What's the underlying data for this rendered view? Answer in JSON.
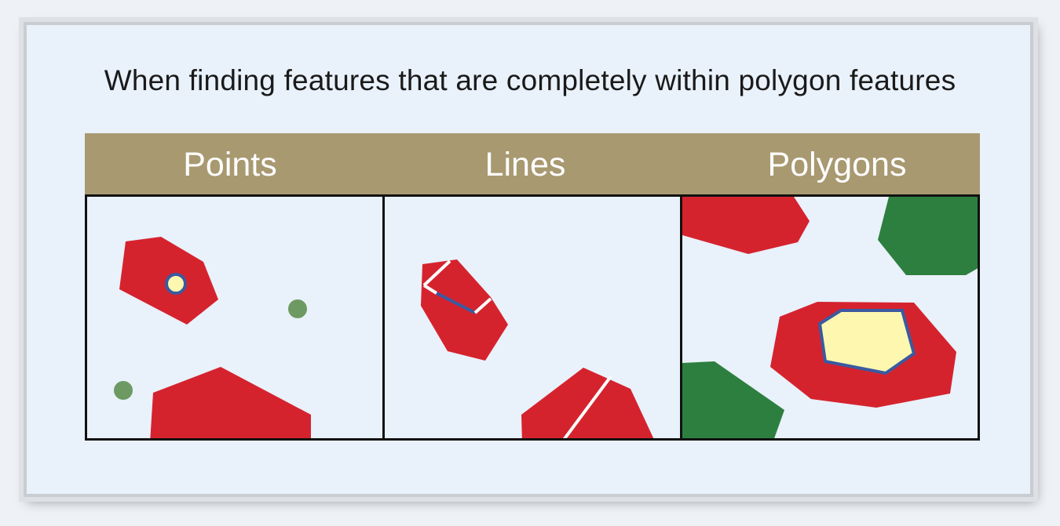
{
  "title": "When finding features that are completely within polygon features",
  "panels": [
    {
      "label": "Points"
    },
    {
      "label": "Lines"
    },
    {
      "label": "Polygons"
    }
  ],
  "colors": {
    "header_band": "#a89971",
    "polygon_red": "#d5232e",
    "green_feature": "#2d7f3f",
    "green_point": "#6d9a62",
    "selected_fill": "#fdf7b0",
    "selected_outline": "#3a5aa0",
    "background": "#e9f1fa"
  }
}
